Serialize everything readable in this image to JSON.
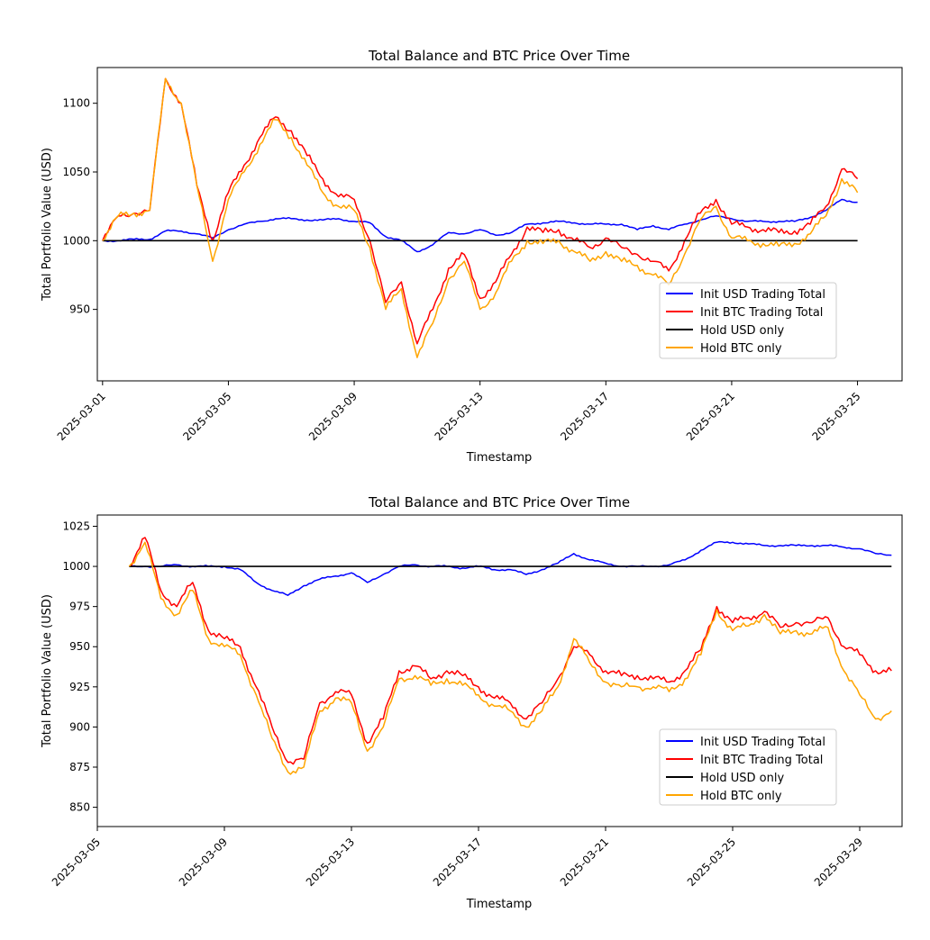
{
  "chart_data": [
    {
      "type": "line",
      "title": "Total Balance and BTC Price Over Time",
      "xlabel": "Timestamp",
      "ylabel": "Total Portfolio Value (USD)",
      "xlim": [
        "2025-02-28T20:00",
        "2025-03-26T10:00"
      ],
      "ylim": [
        898,
        1126
      ],
      "xticks": [
        "2025-03-01",
        "2025-03-05",
        "2025-03-09",
        "2025-03-13",
        "2025-03-17",
        "2025-03-21",
        "2025-03-25"
      ],
      "yticks": [
        950,
        1000,
        1050,
        1100
      ],
      "legend": "lower-right",
      "series": [
        {
          "name": "Init USD Trading Total",
          "color": "#0000ff",
          "x": [
            "2025-03-01T00:00",
            "2025-03-01T12:00",
            "2025-03-02T00:00",
            "2025-03-02T12:00",
            "2025-03-03T00:00",
            "2025-03-03T12:00",
            "2025-03-04T00:00",
            "2025-03-04T12:00",
            "2025-03-05T00:00",
            "2025-03-05T12:00",
            "2025-03-06T00:00",
            "2025-03-06T12:00",
            "2025-03-07T00:00",
            "2025-03-07T12:00",
            "2025-03-08T00:00",
            "2025-03-08T12:00",
            "2025-03-09T00:00",
            "2025-03-09T12:00",
            "2025-03-10T00:00",
            "2025-03-10T12:00",
            "2025-03-11T00:00",
            "2025-03-11T12:00",
            "2025-03-12T00:00",
            "2025-03-12T12:00",
            "2025-03-13T00:00",
            "2025-03-13T12:00",
            "2025-03-14T00:00",
            "2025-03-14T12:00",
            "2025-03-15T00:00",
            "2025-03-15T12:00",
            "2025-03-16T00:00",
            "2025-03-16T12:00",
            "2025-03-17T00:00",
            "2025-03-17T12:00",
            "2025-03-18T00:00",
            "2025-03-18T12:00",
            "2025-03-19T00:00",
            "2025-03-19T12:00",
            "2025-03-20T00:00",
            "2025-03-20T12:00",
            "2025-03-21T00:00",
            "2025-03-21T12:00",
            "2025-03-22T00:00",
            "2025-03-22T12:00",
            "2025-03-23T00:00",
            "2025-03-23T12:00",
            "2025-03-24T00:00",
            "2025-03-24T12:00",
            "2025-03-25T00:00"
          ],
          "values": [
            1000,
            1000,
            1001,
            1001,
            1007,
            1007,
            1005,
            1002,
            1008,
            1012,
            1014,
            1016,
            1016,
            1015,
            1015,
            1016,
            1014,
            1013,
            1003,
            1000,
            992,
            997,
            1006,
            1005,
            1008,
            1004,
            1006,
            1012,
            1013,
            1014,
            1013,
            1012,
            1012,
            1012,
            1008,
            1011,
            1008,
            1012,
            1015,
            1018,
            1016,
            1014,
            1014,
            1014,
            1014,
            1017,
            1022,
            1030,
            1028
          ]
        },
        {
          "name": "Init BTC Trading Total",
          "color": "#ff0000",
          "x": [
            "2025-03-01T00:00",
            "2025-03-01T12:00",
            "2025-03-02T00:00",
            "2025-03-02T12:00",
            "2025-03-03T00:00",
            "2025-03-03T12:00",
            "2025-03-04T00:00",
            "2025-03-04T12:00",
            "2025-03-05T00:00",
            "2025-03-05T12:00",
            "2025-03-06T00:00",
            "2025-03-06T12:00",
            "2025-03-07T00:00",
            "2025-03-07T12:00",
            "2025-03-08T00:00",
            "2025-03-08T12:00",
            "2025-03-09T00:00",
            "2025-03-09T12:00",
            "2025-03-10T00:00",
            "2025-03-10T12:00",
            "2025-03-11T00:00",
            "2025-03-11T12:00",
            "2025-03-12T00:00",
            "2025-03-12T12:00",
            "2025-03-13T00:00",
            "2025-03-13T12:00",
            "2025-03-14T00:00",
            "2025-03-14T12:00",
            "2025-03-15T00:00",
            "2025-03-15T12:00",
            "2025-03-16T00:00",
            "2025-03-16T12:00",
            "2025-03-17T00:00",
            "2025-03-17T12:00",
            "2025-03-18T00:00",
            "2025-03-18T12:00",
            "2025-03-19T00:00",
            "2025-03-19T12:00",
            "2025-03-20T00:00",
            "2025-03-20T12:00",
            "2025-03-21T00:00",
            "2025-03-21T12:00",
            "2025-03-22T00:00",
            "2025-03-22T12:00",
            "2025-03-23T00:00",
            "2025-03-23T12:00",
            "2025-03-24T00:00",
            "2025-03-24T12:00",
            "2025-03-25T00:00"
          ],
          "values": [
            1000,
            1018,
            1020,
            1022,
            1118,
            1100,
            1040,
            1000,
            1035,
            1055,
            1075,
            1090,
            1080,
            1062,
            1045,
            1032,
            1030,
            1000,
            955,
            970,
            925,
            950,
            980,
            990,
            958,
            970,
            990,
            1010,
            1006,
            1008,
            1000,
            995,
            1002,
            995,
            990,
            985,
            978,
            1000,
            1020,
            1030,
            1012,
            1010,
            1008,
            1006,
            1007,
            1012,
            1025,
            1052,
            1045
          ]
        },
        {
          "name": "Hold USD only",
          "color": "#000000",
          "x": [
            "2025-03-01T00:00",
            "2025-03-25T00:00"
          ],
          "values": [
            1000,
            1000
          ]
        },
        {
          "name": "Hold BTC only",
          "color": "#ffa500",
          "x": [
            "2025-03-01T00:00",
            "2025-03-01T12:00",
            "2025-03-02T00:00",
            "2025-03-02T12:00",
            "2025-03-03T00:00",
            "2025-03-03T12:00",
            "2025-03-04T00:00",
            "2025-03-04T12:00",
            "2025-03-05T00:00",
            "2025-03-05T12:00",
            "2025-03-06T00:00",
            "2025-03-06T12:00",
            "2025-03-07T00:00",
            "2025-03-07T12:00",
            "2025-03-08T00:00",
            "2025-03-08T12:00",
            "2025-03-09T00:00",
            "2025-03-09T12:00",
            "2025-03-10T00:00",
            "2025-03-10T12:00",
            "2025-03-11T00:00",
            "2025-03-11T12:00",
            "2025-03-12T00:00",
            "2025-03-12T12:00",
            "2025-03-13T00:00",
            "2025-03-13T12:00",
            "2025-03-14T00:00",
            "2025-03-14T12:00",
            "2025-03-15T00:00",
            "2025-03-15T12:00",
            "2025-03-16T00:00",
            "2025-03-16T12:00",
            "2025-03-17T00:00",
            "2025-03-17T12:00",
            "2025-03-18T00:00",
            "2025-03-18T12:00",
            "2025-03-19T00:00",
            "2025-03-19T12:00",
            "2025-03-20T00:00",
            "2025-03-20T12:00",
            "2025-03-21T00:00",
            "2025-03-21T12:00",
            "2025-03-22T00:00",
            "2025-03-22T12:00",
            "2025-03-23T00:00",
            "2025-03-23T12:00",
            "2025-03-24T00:00",
            "2025-03-24T12:00",
            "2025-03-25T00:00"
          ],
          "values": [
            1000,
            1018,
            1020,
            1022,
            1118,
            1100,
            1040,
            985,
            1030,
            1050,
            1070,
            1088,
            1075,
            1055,
            1035,
            1025,
            1022,
            995,
            950,
            965,
            915,
            940,
            972,
            985,
            950,
            962,
            985,
            1000,
            998,
            1000,
            992,
            985,
            992,
            985,
            982,
            975,
            968,
            990,
            1015,
            1025,
            1002,
            1000,
            998,
            996,
            998,
            1005,
            1018,
            1045,
            1035
          ]
        }
      ]
    },
    {
      "type": "line",
      "title": "Total Balance and BTC Price Over Time",
      "xlabel": "Timestamp",
      "ylabel": "Total Portfolio Value (USD)",
      "xlim": [
        "2025-03-05T00:00",
        "2025-03-30T08:00"
      ],
      "ylim": [
        838,
        1032
      ],
      "xticks": [
        "2025-03-05",
        "2025-03-09",
        "2025-03-13",
        "2025-03-17",
        "2025-03-21",
        "2025-03-25",
        "2025-03-29"
      ],
      "yticks": [
        850,
        875,
        900,
        925,
        950,
        975,
        1000,
        1025
      ],
      "legend": "lower-right",
      "series": [
        {
          "name": "Init USD Trading Total",
          "color": "#0000ff",
          "x": [
            "2025-03-06T00:00",
            "2025-03-06T12:00",
            "2025-03-07T00:00",
            "2025-03-07T12:00",
            "2025-03-08T00:00",
            "2025-03-08T12:00",
            "2025-03-09T00:00",
            "2025-03-09T12:00",
            "2025-03-10T00:00",
            "2025-03-10T12:00",
            "2025-03-11T00:00",
            "2025-03-11T12:00",
            "2025-03-12T00:00",
            "2025-03-12T12:00",
            "2025-03-13T00:00",
            "2025-03-13T12:00",
            "2025-03-14T00:00",
            "2025-03-14T12:00",
            "2025-03-15T00:00",
            "2025-03-15T12:00",
            "2025-03-16T00:00",
            "2025-03-16T12:00",
            "2025-03-17T00:00",
            "2025-03-17T12:00",
            "2025-03-18T00:00",
            "2025-03-18T12:00",
            "2025-03-19T00:00",
            "2025-03-19T12:00",
            "2025-03-20T00:00",
            "2025-03-20T12:00",
            "2025-03-21T00:00",
            "2025-03-21T12:00",
            "2025-03-22T00:00",
            "2025-03-22T12:00",
            "2025-03-23T00:00",
            "2025-03-23T12:00",
            "2025-03-24T00:00",
            "2025-03-24T12:00",
            "2025-03-25T00:00",
            "2025-03-25T12:00",
            "2025-03-26T00:00",
            "2025-03-26T12:00",
            "2025-03-27T00:00",
            "2025-03-27T12:00",
            "2025-03-28T00:00",
            "2025-03-28T12:00",
            "2025-03-29T00:00",
            "2025-03-29T12:00",
            "2025-03-30T00:00"
          ],
          "values": [
            1000,
            1000,
            1000,
            1001,
            1000,
            1000,
            1000,
            998,
            990,
            985,
            982,
            988,
            992,
            994,
            996,
            990,
            995,
            1000,
            1001,
            1000,
            1000,
            999,
            1000,
            998,
            998,
            995,
            998,
            1002,
            1008,
            1004,
            1002,
            1000,
            1000,
            1000,
            1001,
            1004,
            1010,
            1015,
            1015,
            1014,
            1013,
            1013,
            1013,
            1013,
            1013,
            1012,
            1011,
            1008,
            1007
          ]
        },
        {
          "name": "Init BTC Trading Total",
          "color": "#ff0000",
          "x": [
            "2025-03-06T00:00",
            "2025-03-06T12:00",
            "2025-03-07T00:00",
            "2025-03-07T12:00",
            "2025-03-08T00:00",
            "2025-03-08T12:00",
            "2025-03-09T00:00",
            "2025-03-09T12:00",
            "2025-03-10T00:00",
            "2025-03-10T12:00",
            "2025-03-11T00:00",
            "2025-03-11T12:00",
            "2025-03-12T00:00",
            "2025-03-12T12:00",
            "2025-03-13T00:00",
            "2025-03-13T12:00",
            "2025-03-14T00:00",
            "2025-03-14T12:00",
            "2025-03-15T00:00",
            "2025-03-15T12:00",
            "2025-03-16T00:00",
            "2025-03-16T12:00",
            "2025-03-17T00:00",
            "2025-03-17T12:00",
            "2025-03-18T00:00",
            "2025-03-18T12:00",
            "2025-03-19T00:00",
            "2025-03-19T12:00",
            "2025-03-20T00:00",
            "2025-03-20T12:00",
            "2025-03-21T00:00",
            "2025-03-21T12:00",
            "2025-03-22T00:00",
            "2025-03-22T12:00",
            "2025-03-23T00:00",
            "2025-03-23T12:00",
            "2025-03-24T00:00",
            "2025-03-24T12:00",
            "2025-03-25T00:00",
            "2025-03-25T12:00",
            "2025-03-26T00:00",
            "2025-03-26T12:00",
            "2025-03-27T00:00",
            "2025-03-27T12:00",
            "2025-03-28T00:00",
            "2025-03-28T12:00",
            "2025-03-29T00:00",
            "2025-03-29T12:00",
            "2025-03-30T00:00"
          ],
          "values": [
            1000,
            1018,
            985,
            975,
            990,
            960,
            955,
            950,
            925,
            900,
            878,
            880,
            915,
            922,
            920,
            890,
            905,
            935,
            938,
            930,
            935,
            932,
            925,
            918,
            915,
            905,
            915,
            930,
            950,
            945,
            935,
            932,
            932,
            930,
            928,
            935,
            948,
            975,
            965,
            968,
            972,
            962,
            965,
            965,
            968,
            950,
            945,
            935,
            935
          ]
        },
        {
          "name": "Hold USD only",
          "color": "#000000",
          "x": [
            "2025-03-06T00:00",
            "2025-03-30T00:00"
          ],
          "values": [
            1000,
            1000
          ]
        },
        {
          "name": "Hold BTC only",
          "color": "#ffa500",
          "x": [
            "2025-03-06T00:00",
            "2025-03-06T12:00",
            "2025-03-07T00:00",
            "2025-03-07T12:00",
            "2025-03-08T00:00",
            "2025-03-08T12:00",
            "2025-03-09T00:00",
            "2025-03-09T12:00",
            "2025-03-10T00:00",
            "2025-03-10T12:00",
            "2025-03-11T00:00",
            "2025-03-11T12:00",
            "2025-03-12T00:00",
            "2025-03-12T12:00",
            "2025-03-13T00:00",
            "2025-03-13T12:00",
            "2025-03-14T00:00",
            "2025-03-14T12:00",
            "2025-03-15T00:00",
            "2025-03-15T12:00",
            "2025-03-16T00:00",
            "2025-03-16T12:00",
            "2025-03-17T00:00",
            "2025-03-17T12:00",
            "2025-03-18T00:00",
            "2025-03-18T12:00",
            "2025-03-19T00:00",
            "2025-03-19T12:00",
            "2025-03-20T00:00",
            "2025-03-20T12:00",
            "2025-03-21T00:00",
            "2025-03-21T12:00",
            "2025-03-22T00:00",
            "2025-03-22T12:00",
            "2025-03-23T00:00",
            "2025-03-23T12:00",
            "2025-03-24T00:00",
            "2025-03-24T12:00",
            "2025-03-25T00:00",
            "2025-03-25T12:00",
            "2025-03-26T00:00",
            "2025-03-26T12:00",
            "2025-03-27T00:00",
            "2025-03-27T12:00",
            "2025-03-28T00:00",
            "2025-03-28T12:00",
            "2025-03-29T00:00",
            "2025-03-29T12:00",
            "2025-03-30T00:00"
          ],
          "values": [
            1000,
            1015,
            980,
            970,
            985,
            955,
            950,
            945,
            920,
            893,
            872,
            875,
            910,
            918,
            915,
            885,
            900,
            930,
            932,
            926,
            930,
            926,
            920,
            913,
            910,
            900,
            910,
            925,
            955,
            940,
            928,
            925,
            925,
            925,
            922,
            930,
            945,
            973,
            960,
            963,
            970,
            958,
            960,
            958,
            962,
            935,
            920,
            905,
            910
          ]
        }
      ]
    }
  ]
}
